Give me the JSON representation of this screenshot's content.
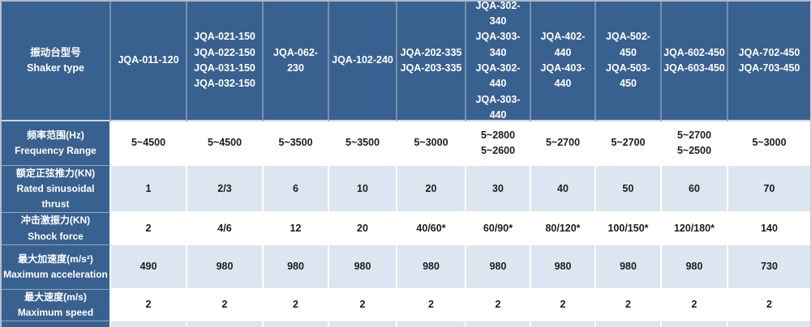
{
  "chart_data": {
    "type": "table",
    "corner_label": "振动台型号\nShaker type",
    "column_headers": [
      "JQA-011-120",
      "JQA-021-150\nJQA-022-150\nJQA-031-150\nJQA-032-150",
      "JQA-062-230",
      "JQA-102-240",
      "JQA-202-335\nJQA-203-335",
      "JQA-302-340\nJQA-303-340\nJQA-302-440\nJQA-303-440",
      "JQA-402-440\nJQA-403-440",
      "JQA-502-450\nJQA-503-450",
      "JQA-602-450\nJQA-603-450",
      "JQA-702-450\nJQA-703-450"
    ],
    "row_headers": [
      "频率范围(Hz)\nFrequency Range",
      "额定正弦推力(KN)\nRated sinusoidal thrust",
      "冲击激振力(KN)\nShock force",
      "最大加速度(m/s²)\nMaximum acceleration",
      "最大速度(m/s)\nMaximum speed"
    ],
    "values": [
      [
        "5~4500",
        "5~4500",
        "5~3500",
        "5~3500",
        "5~3000",
        "5~2800\n5~2600",
        "5~2700",
        "5~2700",
        "5~2700\n5~2500",
        "5~3000"
      ],
      [
        "1",
        "2/3",
        "6",
        "10",
        "20",
        "30",
        "40",
        "50",
        "60",
        "70"
      ],
      [
        "2",
        "4/6",
        "12",
        "20",
        "40/60*",
        "60/90*",
        "80/120*",
        "100/150*",
        "120/180*",
        "140"
      ],
      [
        "490",
        "980",
        "980",
        "980",
        "980",
        "980",
        "980",
        "980",
        "980",
        "730"
      ],
      [
        "2",
        "2",
        "2",
        "2",
        "2",
        "2",
        "2",
        "2",
        "2",
        "2"
      ]
    ]
  },
  "colors": {
    "header_blue": "#39618F",
    "band_light_blue": "#DCE6F1",
    "data_text": "#1C1C1C",
    "header_text": "#FFFFFF",
    "outer_border": "#AEB9CA"
  }
}
